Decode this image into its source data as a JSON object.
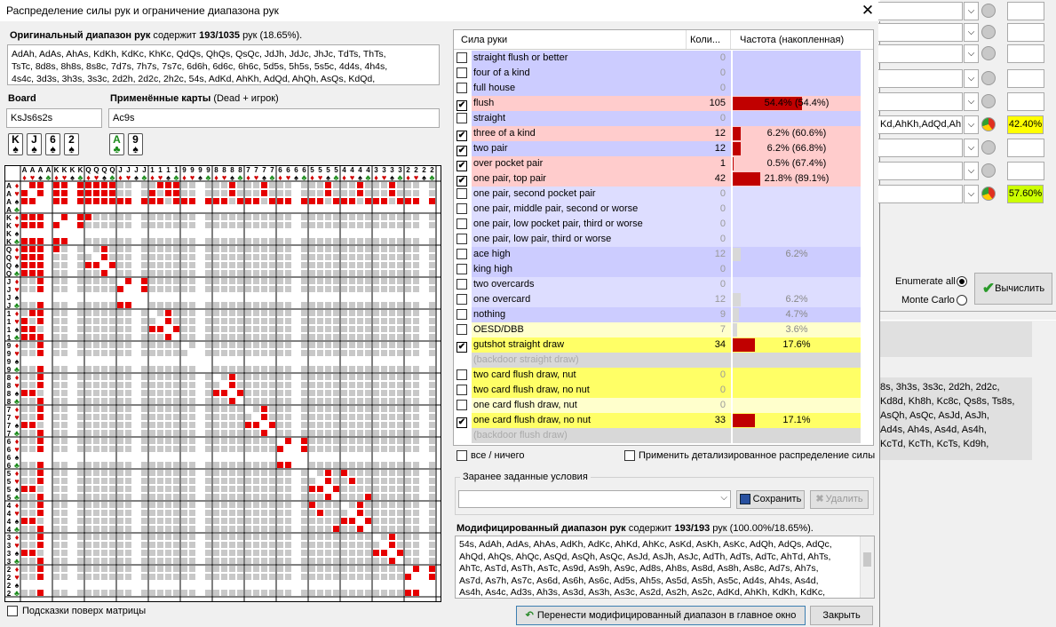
{
  "window": {
    "title": "Распределение силы рук и ограничение диапазона рук",
    "close": "✕"
  },
  "orig": {
    "label": "Оригинальный диапазон рук",
    "contains": "содержит",
    "count": "193/1035",
    "suffix": "рук (18.65%).",
    "lines": [
      "AdAh, AdAs, AhAs, KdKh, KdKc, KhKc, QdQs, QhQs, QsQc, JdJh, JdJc, JhJc, TdTs, ThTs,",
      "TsTc, 8d8s, 8h8s, 8s8c, 7d7s, 7h7s, 7s7c, 6d6h, 6d6c, 6h6c, 5d5s, 5h5s, 5s5c, 4d4s, 4h4s,",
      "4s4c, 3d3s, 3h3s, 3s3c, 2d2h, 2d2c, 2h2c, 54s, AdKd, AhKh, AdQd, AhQh, AsQs, KdQd,"
    ]
  },
  "board": {
    "label": "Board",
    "value": "KsJs6s2s",
    "cards": [
      {
        "r": "K",
        "s": "♠"
      },
      {
        "r": "J",
        "s": "♠"
      },
      {
        "r": "6",
        "s": "♠"
      },
      {
        "r": "2",
        "s": "♠"
      }
    ]
  },
  "applied": {
    "label": "Применённые карты",
    "sub": "(Dead + игрок)",
    "value": "Ac9s",
    "cards": [
      {
        "r": "A",
        "s": "♣",
        "c": "#1a8a1a"
      },
      {
        "r": "9",
        "s": "♠",
        "c": "#000"
      }
    ]
  },
  "matrix": {
    "ranks": [
      "A",
      "K",
      "Q",
      "J",
      "10",
      "9",
      "8",
      "7",
      "6",
      "5",
      "4",
      "3",
      "2"
    ],
    "suits": [
      "♦",
      "♥",
      "♠",
      "♣"
    ],
    "hint": "Подсказки поверх матрицы",
    "colors": {
      "sel": "#e60000",
      "unsel": "#c8c8c8",
      "dead": "#ffffff"
    }
  },
  "strength": {
    "headers": [
      "Сила руки",
      "Коли...",
      "Частота (накопленная)"
    ],
    "rows": [
      {
        "label": "straight flush or better",
        "count": "0",
        "freq": "",
        "checked": false,
        "bg": "#ccccff",
        "bar": 0
      },
      {
        "label": "four of a kind",
        "count": "0",
        "freq": "",
        "checked": false,
        "bg": "#ccccff",
        "bar": 0
      },
      {
        "label": "full house",
        "count": "0",
        "freq": "",
        "checked": false,
        "bg": "#ccccff",
        "bar": 0
      },
      {
        "label": "flush",
        "count": "105",
        "freq": "54.4% (54.4%)",
        "checked": true,
        "bg": "#ffcccc",
        "bar": 54.4
      },
      {
        "label": "straight",
        "count": "0",
        "freq": "",
        "checked": false,
        "bg": "#ccccff",
        "bar": 0
      },
      {
        "label": "three of a kind",
        "count": "12",
        "freq": "6.2% (60.6%)",
        "checked": true,
        "bg": "#ffcccc",
        "bar": 6.2
      },
      {
        "label": "two pair",
        "count": "12",
        "freq": "6.2% (66.8%)",
        "checked": true,
        "bg": "#ccccff",
        "bar": 6.2
      },
      {
        "label": "over pocket pair",
        "count": "1",
        "freq": "0.5% (67.4%)",
        "checked": true,
        "bg": "#ffcccc",
        "bar": 0.5
      },
      {
        "label": "one pair, top pair",
        "count": "42",
        "freq": "21.8% (89.1%)",
        "checked": true,
        "bg": "#ffcccc",
        "bar": 21.8
      },
      {
        "label": "one pair, second pocket pair",
        "count": "0",
        "freq": "",
        "checked": false,
        "bg": "#ddddff",
        "bar": 0
      },
      {
        "label": "one pair, middle pair, second or worse",
        "count": "0",
        "freq": "",
        "checked": false,
        "bg": "#ddddff",
        "bar": 0
      },
      {
        "label": "one pair, low pocket pair, third or worse",
        "count": "0",
        "freq": "",
        "checked": false,
        "bg": "#ddddff",
        "bar": 0
      },
      {
        "label": "one pair, low pair, third or worse",
        "count": "0",
        "freq": "",
        "checked": false,
        "bg": "#ddddff",
        "bar": 0
      },
      {
        "label": "ace high",
        "count": "12",
        "freq": "6.2%",
        "checked": false,
        "bg": "#ccccff",
        "bar": 6.2
      },
      {
        "label": "king high",
        "count": "0",
        "freq": "",
        "checked": false,
        "bg": "#ccccff",
        "bar": 0
      },
      {
        "label": "two overcards",
        "count": "0",
        "freq": "",
        "checked": false,
        "bg": "#ddddff",
        "bar": 0
      },
      {
        "label": "one overcard",
        "count": "12",
        "freq": "6.2%",
        "checked": false,
        "bg": "#ddddff",
        "bar": 6.2
      },
      {
        "label": "nothing",
        "count": "9",
        "freq": "4.7%",
        "checked": false,
        "bg": "#ccccff",
        "bar": 4.7
      },
      {
        "label": "OESD/DBB",
        "count": "7",
        "freq": "3.6%",
        "checked": false,
        "bg": "#ffffcc",
        "bar": 3.6
      },
      {
        "label": "gutshot straight draw",
        "count": "34",
        "freq": "17.6%",
        "checked": true,
        "bg": "#ffff66",
        "bar": 17.6
      },
      {
        "label": "(backdoor straight draw)",
        "count": "",
        "freq": "",
        "checked": false,
        "bg": "#d8d8d8",
        "bar": 0,
        "nobox": true
      },
      {
        "label": "two card flush draw, nut",
        "count": "0",
        "freq": "",
        "checked": false,
        "bg": "#ffff66",
        "bar": 0
      },
      {
        "label": "two card flush draw, no nut",
        "count": "0",
        "freq": "",
        "checked": false,
        "bg": "#ffff66",
        "bar": 0
      },
      {
        "label": "one card flush draw, nut",
        "count": "0",
        "freq": "",
        "checked": false,
        "bg": "#ffffcc",
        "bar": 0
      },
      {
        "label": "one card flush draw, no nut",
        "count": "33",
        "freq": "17.1%",
        "checked": true,
        "bg": "#ffff66",
        "bar": 17.1
      },
      {
        "label": "(backdoor flush draw)",
        "count": "",
        "freq": "",
        "checked": false,
        "bg": "#d8d8d8",
        "bar": 0,
        "nobox": true
      }
    ],
    "all_none": "все / ничего",
    "detailed": "Применить детализированное распределение силы"
  },
  "preset": {
    "label": "Заранее заданные условия",
    "save": "Сохранить",
    "delete": "Удалить"
  },
  "mod": {
    "label": "Модифицированный диапазон рук",
    "contains": "содержит",
    "count": "193/193",
    "suffix": "рук (100.00%/18.65%).",
    "lines": [
      "54s, AdAh, AdAs, AhAs, AdKh, AdKc, AhKd, AhKc, AsKd, AsKh, AsKc, AdQh, AdQs, AdQc,",
      "AhQd, AhQs, AhQc, AsQd, AsQh, AsQc, AsJd, AsJh, AsJc, AdTh, AdTs, AdTc, AhTd, AhTs,",
      "AhTc, AsTd, AsTh, AsTc, As9d, As9h, As9c, Ad8s, Ah8s, As8d, As8h, As8c, Ad7s, Ah7s,",
      "As7d, As7h, As7c, As6d, As6h, As6c, Ad5s, Ah5s, As5d, As5h, As5c, Ad4s, Ah4s, As4d,",
      "As4h, As4c, Ad3s, Ah3s, As3d, As3h, As3c, As2d, As2h, As2c, AdKd, AhKh, KdKh, KdKc,"
    ]
  },
  "buttons": {
    "transfer": "Перенести модифицированный диапазон в главное окно",
    "close": "Закрыть"
  },
  "right": {
    "row5": "Kd,AhKh,AdQd,Ah",
    "pct1": "42.40%",
    "pct2": "57.60%",
    "enum": "Enumerate all",
    "mc": "Monte Carlo",
    "calc": "Вычислить",
    "lines": [
      "8s, 3h3s, 3s3c, 2d2h, 2d2c,",
      "Kd8d, Kh8h, Kc8c, Qs8s, Ts8s,",
      "AsQh, AsQc, AsJd, AsJh,",
      "Ad4s, Ah4s, As4d, As4h,",
      "KcTd, KcTh, KcTs, Kd9h,"
    ],
    "colors": {
      "yellow": "#ffff00",
      "green": "#ccff00"
    }
  }
}
